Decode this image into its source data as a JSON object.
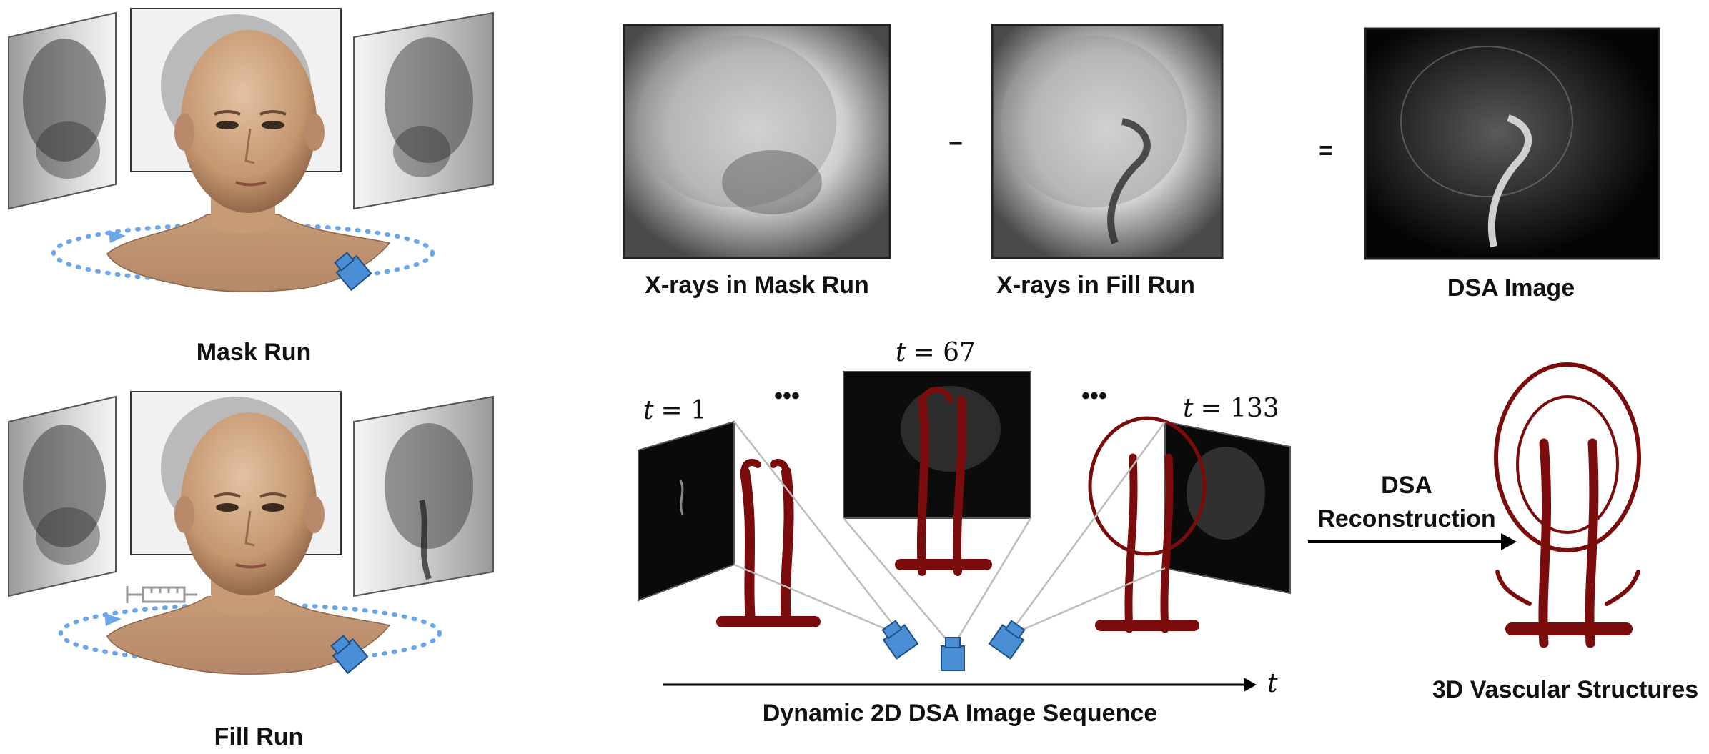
{
  "labels": {
    "mask_run": "Mask Run",
    "fill_run": "Fill Run",
    "xray_mask": "X-rays in Mask Run",
    "xray_fill": "X-rays in Fill Run",
    "dsa_image": "DSA Image",
    "minus": "−",
    "equals": "=",
    "dsa_reconstruction_line1": "DSA",
    "dsa_reconstruction_line2": "Reconstruction",
    "vascular": "3D Vascular Structures",
    "sequence": "Dynamic 2D DSA Image Sequence",
    "time_axis": "t",
    "ellipsis": "•••"
  },
  "frames": [
    {
      "t_label": "t",
      "eq": "= 1"
    },
    {
      "t_label": "t",
      "eq": "= 67"
    },
    {
      "t_label": "t",
      "eq": "= 133"
    }
  ],
  "colors": {
    "skin": "#caa07f",
    "skin_dark": "#8f6548",
    "orbit": "#6aa7e8",
    "camera": "#4a8fd6",
    "vessel": "#7a0c0c",
    "vessel_light": "#e8c5b8",
    "xray_bg": "#f2f2f2",
    "xray_dark": "#3a3a3a"
  },
  "icons": [
    "c-arm-camera-icon",
    "syringe-icon",
    "arrow-right-icon"
  ]
}
